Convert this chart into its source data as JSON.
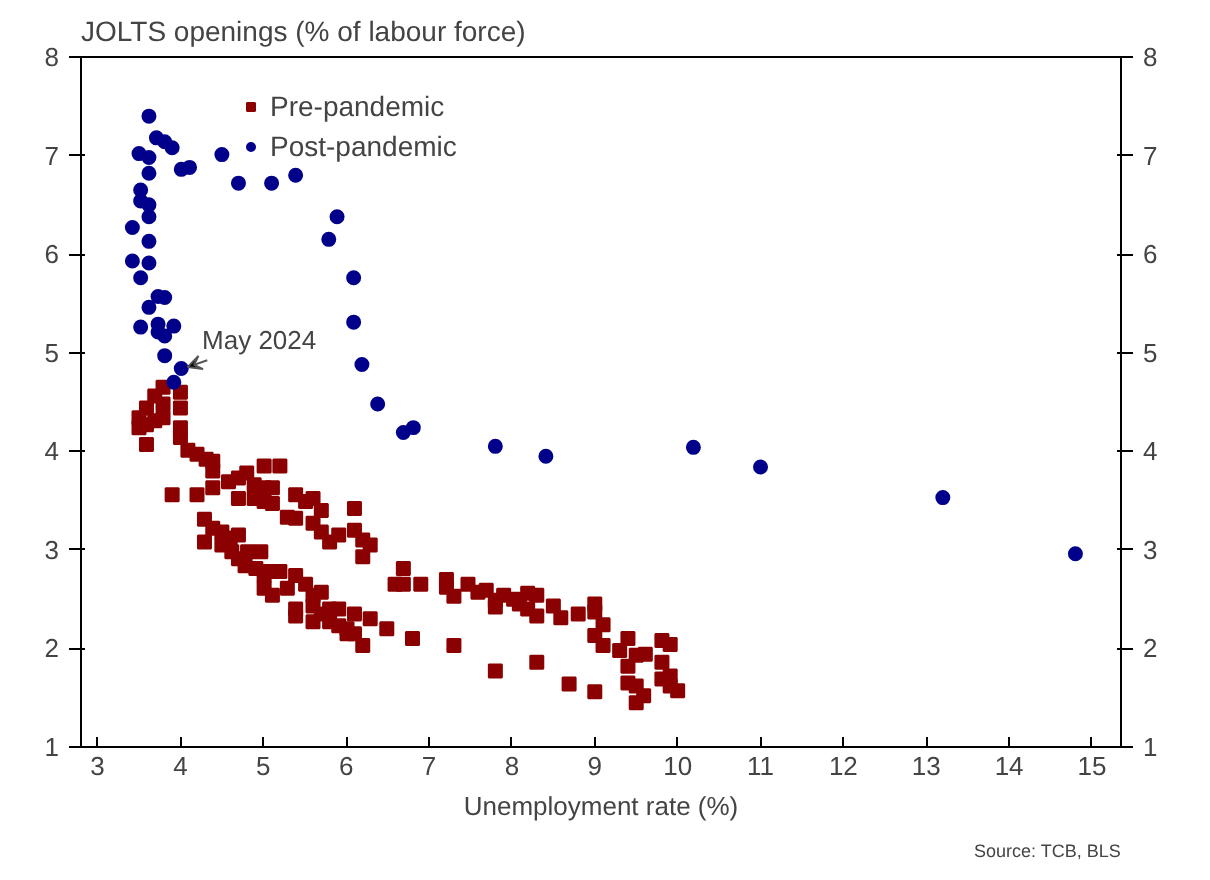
{
  "chart_data": {
    "type": "scatter",
    "title": "JOLTS openings (% of labour force)",
    "xlabel": "Unemployment rate (%)",
    "xlim": [
      2.8,
      15.35
    ],
    "xticks": [
      3,
      4,
      5,
      6,
      7,
      8,
      9,
      10,
      11,
      12,
      13,
      14,
      15
    ],
    "ylim": [
      1,
      8
    ],
    "yticks": [
      1,
      2,
      3,
      4,
      5,
      6,
      7,
      8
    ],
    "y2lim": [
      1,
      8
    ],
    "y2ticks": [
      1,
      2,
      3,
      4,
      5,
      6,
      7,
      8
    ],
    "grid": false,
    "legend": "top left",
    "annotations": [
      {
        "text": "May 2024",
        "x": 4.01,
        "y": 4.84
      },
      "Source: TCB, BLS"
    ],
    "series": [
      {
        "name": "Pre-pandemic",
        "color": "#8b0000",
        "marker": "square",
        "x": [
          3.79,
          4.0,
          3.69,
          3.59,
          3.79,
          3.5,
          3.79,
          4.0,
          3.5,
          3.59,
          3.69,
          3.59,
          4.0,
          4.0,
          4.09,
          4.2,
          4.31,
          4.39,
          4.39,
          3.9,
          4.2,
          4.39,
          4.58,
          4.7,
          4.8,
          4.7,
          4.89,
          5.01,
          5.2,
          5.01,
          5.11,
          4.89,
          5.01,
          5.11,
          5.39,
          5.51,
          5.6,
          5.7,
          5.29,
          5.39,
          5.6,
          5.7,
          5.8,
          5.91,
          6.1,
          6.1,
          6.2,
          6.29,
          6.2,
          4.29,
          4.39,
          4.29,
          4.5,
          4.6,
          4.7,
          4.5,
          4.62,
          4.7,
          4.81,
          4.78,
          4.97,
          4.91,
          5.01,
          5.08,
          5.2,
          5.01,
          5.11,
          5.29,
          5.39,
          5.51,
          5.39,
          5.39,
          5.6,
          5.6,
          5.7,
          5.7,
          5.6,
          5.8,
          5.91,
          5.8,
          5.91,
          6.01,
          6.1,
          6.01,
          6.1,
          6.2,
          6.29,
          6.49,
          6.8,
          6.69,
          6.59,
          6.69,
          6.9,
          7.21,
          7.21,
          7.47,
          7.3,
          7.3,
          7.59,
          7.69,
          7.8,
          7.8,
          7.9,
          8.02,
          8.09,
          8.19,
          8.3,
          8.19,
          8.3,
          8.5,
          8.59,
          8.8,
          9.0,
          9.0,
          9.1,
          9.0,
          9.1,
          9.3,
          9.4,
          9.4,
          9.5,
          9.61,
          9.81,
          9.91,
          9.81,
          9.81,
          9.91,
          9.91,
          10.0,
          9.4,
          9.5,
          9.59,
          9.5,
          7.8,
          8.3,
          8.69,
          9.0
        ],
        "values": [
          4.65,
          4.6,
          4.56,
          4.44,
          4.48,
          4.34,
          4.34,
          4.44,
          4.24,
          4.27,
          4.31,
          4.07,
          4.24,
          4.14,
          4.01,
          3.97,
          3.92,
          3.9,
          3.8,
          3.56,
          3.56,
          3.63,
          3.69,
          3.73,
          3.78,
          3.52,
          3.66,
          3.85,
          3.85,
          3.63,
          3.63,
          3.52,
          3.49,
          3.47,
          3.56,
          3.49,
          3.52,
          3.4,
          3.33,
          3.32,
          3.27,
          3.18,
          3.08,
          3.15,
          3.42,
          3.2,
          3.1,
          3.05,
          2.93,
          3.31,
          3.22,
          3.08,
          3.18,
          3.12,
          3.15,
          3.05,
          2.98,
          2.91,
          2.98,
          2.84,
          2.98,
          2.81,
          2.74,
          2.78,
          2.78,
          2.61,
          2.54,
          2.61,
          2.74,
          2.65,
          2.4,
          2.33,
          2.54,
          2.43,
          2.57,
          2.35,
          2.27,
          2.4,
          2.4,
          2.27,
          2.23,
          2.2,
          2.35,
          2.15,
          2.15,
          2.03,
          2.3,
          2.2,
          2.1,
          2.81,
          2.65,
          2.65,
          2.65,
          2.7,
          2.62,
          2.65,
          2.53,
          2.03,
          2.57,
          2.59,
          2.49,
          2.42,
          2.54,
          2.5,
          2.45,
          2.56,
          2.54,
          2.4,
          2.33,
          2.43,
          2.31,
          2.35,
          2.45,
          2.37,
          2.24,
          2.13,
          2.03,
          1.98,
          2.1,
          1.82,
          1.93,
          1.94,
          2.08,
          2.04,
          1.86,
          1.69,
          1.72,
          1.62,
          1.57,
          1.65,
          1.62,
          1.52,
          1.45,
          1.77,
          1.86,
          1.64,
          1.56
        ]
      },
      {
        "name": "Post-pandemic",
        "color": "#00008b",
        "marker": "circle",
        "x": [
          3.62,
          3.71,
          3.81,
          3.9,
          3.5,
          3.62,
          3.62,
          4.01,
          4.11,
          4.5,
          4.7,
          5.1,
          5.39,
          3.52,
          3.52,
          3.62,
          3.62,
          3.42,
          3.62,
          3.42,
          3.62,
          3.52,
          3.73,
          3.81,
          3.62,
          3.52,
          3.73,
          3.73,
          3.92,
          3.81,
          3.81,
          4.01,
          3.92,
          5.89,
          5.79,
          6.09,
          6.09,
          6.19,
          6.38,
          6.69,
          6.81,
          6.69,
          7.8,
          8.41,
          10.19,
          11.0,
          13.2,
          14.8
        ],
        "values": [
          7.4,
          7.18,
          7.14,
          7.08,
          7.02,
          6.98,
          6.82,
          6.86,
          6.88,
          7.01,
          6.72,
          6.72,
          6.8,
          6.65,
          6.54,
          6.5,
          6.38,
          6.27,
          6.13,
          5.93,
          5.91,
          5.76,
          5.57,
          5.56,
          5.46,
          5.26,
          5.29,
          5.21,
          5.27,
          5.17,
          4.97,
          4.84,
          4.7,
          6.38,
          6.15,
          5.76,
          5.31,
          4.88,
          4.48,
          null,
          4.24,
          4.19,
          4.05,
          3.95,
          4.04,
          3.84,
          3.53,
          2.96
        ]
      }
    ]
  }
}
